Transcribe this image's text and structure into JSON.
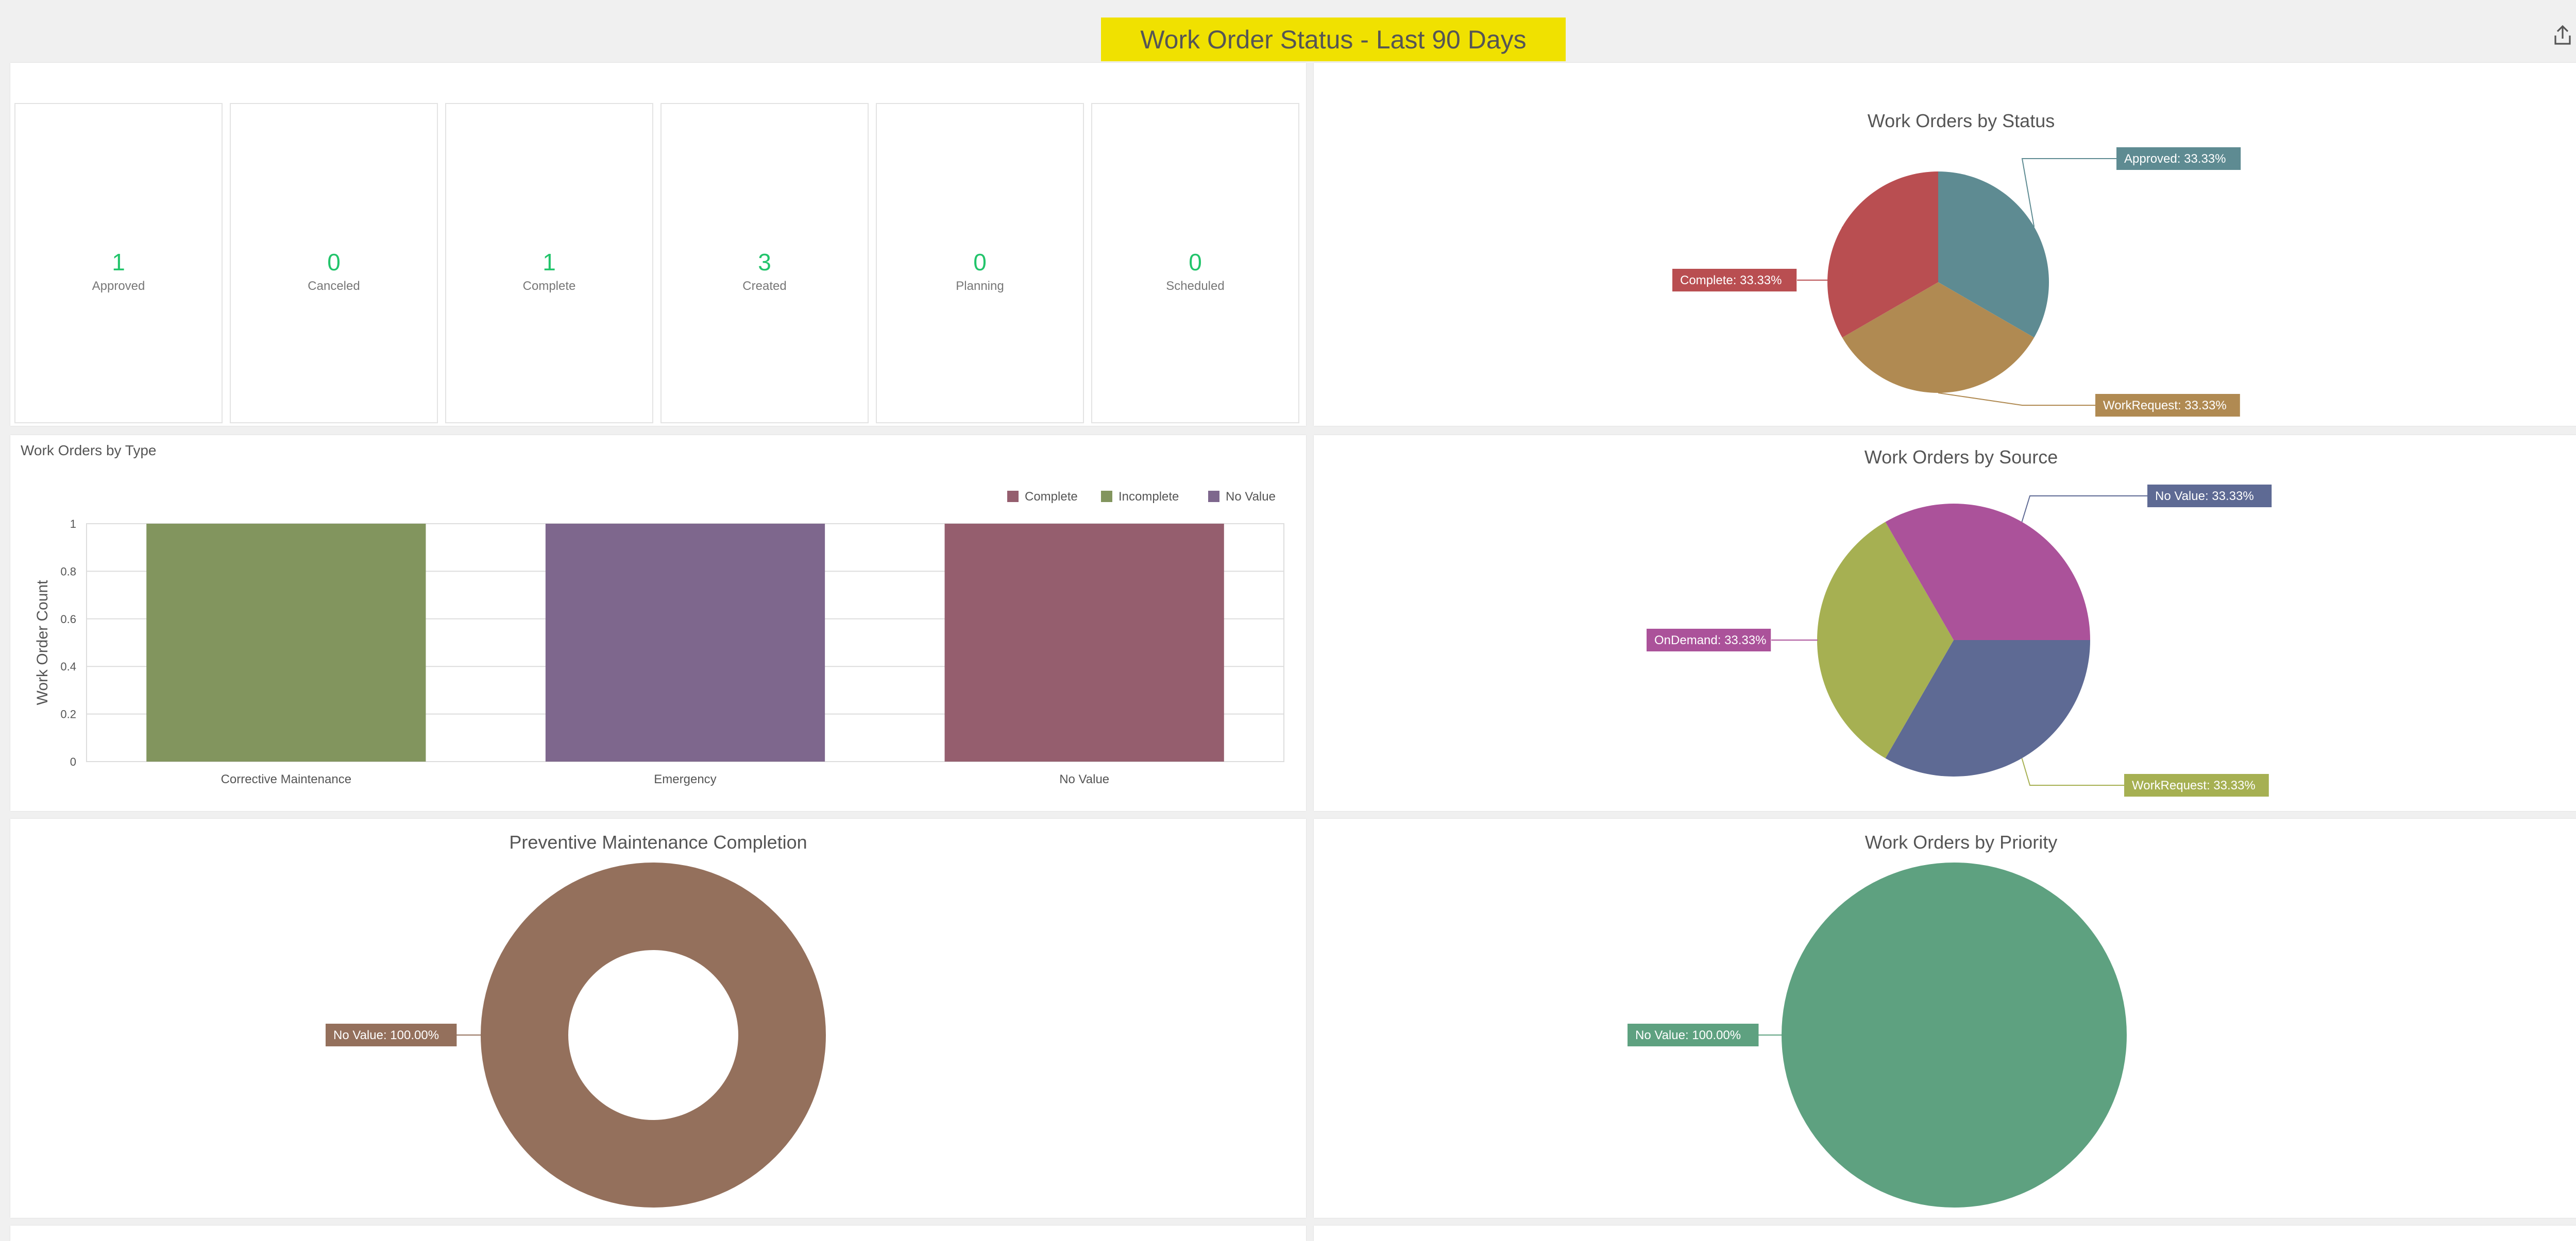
{
  "header": {
    "title": "Work Order Status - Last 90 Days",
    "icons": [
      "share-icon",
      "filter-sliders-icon"
    ]
  },
  "kpis": [
    {
      "value": "1",
      "label": "Approved"
    },
    {
      "value": "0",
      "label": "Canceled"
    },
    {
      "value": "1",
      "label": "Complete"
    },
    {
      "value": "3",
      "label": "Created"
    },
    {
      "value": "0",
      "label": "Planning"
    },
    {
      "value": "0",
      "label": "Scheduled"
    }
  ],
  "kpi_color": "#22c46b",
  "chart_data": [
    {
      "type": "pie",
      "title": "Work Orders by Status",
      "slices": [
        {
          "label": "Approved: 33.33%",
          "value": 33.33,
          "color": "#5e8b92"
        },
        {
          "label": "WorkRequest: 33.33%",
          "value": 33.33,
          "color": "#b08a52"
        },
        {
          "label": "Complete: 33.33%",
          "value": 33.33,
          "color": "#b94e51"
        }
      ]
    },
    {
      "type": "bar",
      "title": "Work Orders by Type",
      "ylabel": "Work Order Count",
      "ylim": [
        0,
        1
      ],
      "yticks": [
        "0",
        "0.2",
        "0.4",
        "0.6",
        "0.8",
        "1"
      ],
      "categories": [
        "Corrective Maintenance",
        "Emergency",
        "No Value"
      ],
      "values": [
        1,
        1,
        1
      ],
      "bar_colors": [
        "#82955e",
        "#7e678d",
        "#955e6e"
      ],
      "legend": [
        {
          "name": "Complete",
          "color": "#955e6e"
        },
        {
          "name": "Incomplete",
          "color": "#82955e"
        },
        {
          "name": "No Value",
          "color": "#7e678d"
        }
      ],
      "legend_position": "top-right",
      "grid": true
    },
    {
      "type": "pie",
      "title": "Work Orders by Source",
      "slices": [
        {
          "label": "No Value: 33.33%",
          "value": 33.33,
          "color": "#5e6a94"
        },
        {
          "label": "WorkRequest: 33.33%",
          "value": 33.33,
          "color": "#a6b052"
        },
        {
          "label": "OnDemand: 33.33%",
          "value": 33.33,
          "color": "#ab529a"
        }
      ]
    },
    {
      "type": "pie",
      "subtype": "donut",
      "title": "Preventive Maintenance Completion",
      "slices": [
        {
          "label": "No Value: 100.00%",
          "value": 100,
          "color": "#94705c"
        }
      ]
    },
    {
      "type": "pie",
      "title": "Work Orders by Priority",
      "slices": [
        {
          "label": "No Value: 100.00%",
          "value": 100,
          "color": "#5ea180"
        }
      ]
    }
  ]
}
